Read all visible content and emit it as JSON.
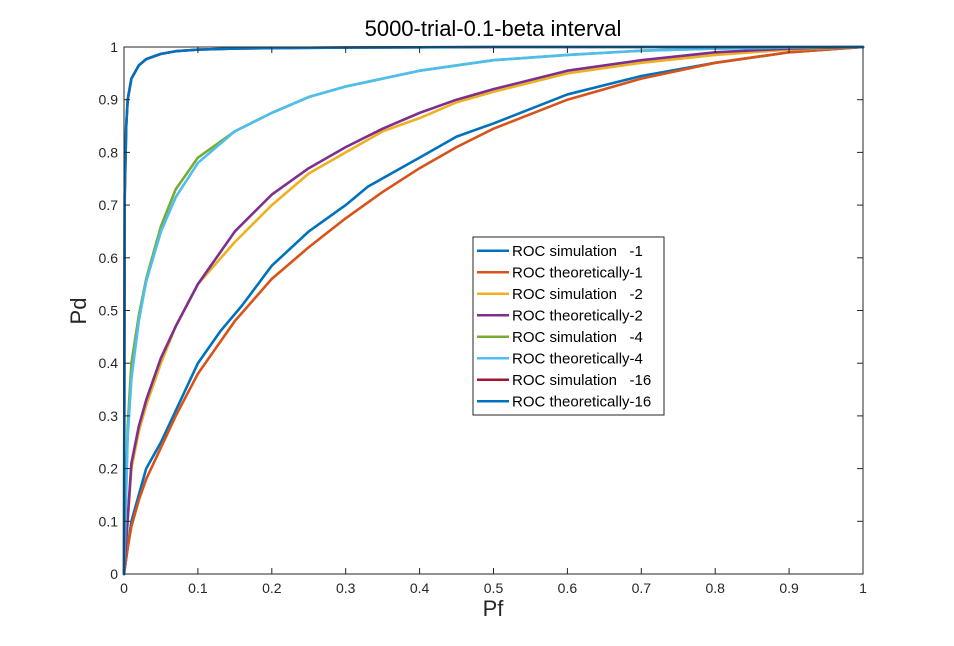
{
  "chart_data": {
    "type": "line",
    "title": "5000-trial-0.1-beta interval",
    "xlabel": "Pf",
    "ylabel": "Pd",
    "xlim": [
      0,
      1
    ],
    "ylim": [
      0,
      1
    ],
    "xticks": [
      "0",
      "0.1",
      "0.2",
      "0.3",
      "0.4",
      "0.5",
      "0.6",
      "0.7",
      "0.8",
      "0.9",
      "1"
    ],
    "yticks": [
      "0",
      "0.1",
      "0.2",
      "0.3",
      "0.4",
      "0.5",
      "0.6",
      "0.7",
      "0.8",
      "0.9",
      "1"
    ],
    "grid": false,
    "legend_position": "center-right",
    "series": [
      {
        "name": "ROC simulation   -1",
        "color": "#0072BD",
        "x": [
          0,
          0.01,
          0.02,
          0.03,
          0.05,
          0.07,
          0.1,
          0.13,
          0.16,
          0.2,
          0.25,
          0.3,
          0.33,
          0.4,
          0.45,
          0.5,
          0.6,
          0.7,
          0.8,
          0.9,
          1
        ],
        "y": [
          0,
          0.1,
          0.15,
          0.2,
          0.25,
          0.31,
          0.4,
          0.46,
          0.51,
          0.585,
          0.65,
          0.7,
          0.735,
          0.79,
          0.83,
          0.855,
          0.91,
          0.945,
          0.97,
          0.99,
          1
        ]
      },
      {
        "name": "ROC theoretically-1",
        "color": "#D95319",
        "x": [
          0,
          0.005,
          0.01,
          0.02,
          0.03,
          0.05,
          0.07,
          0.1,
          0.15,
          0.2,
          0.25,
          0.3,
          0.35,
          0.4,
          0.45,
          0.5,
          0.6,
          0.7,
          0.8,
          0.9,
          1
        ],
        "y": [
          0,
          0.05,
          0.09,
          0.14,
          0.18,
          0.24,
          0.3,
          0.38,
          0.48,
          0.56,
          0.62,
          0.675,
          0.725,
          0.77,
          0.81,
          0.845,
          0.9,
          0.94,
          0.97,
          0.99,
          1
        ]
      },
      {
        "name": "ROC simulation   -2",
        "color": "#EDB120",
        "x": [
          0,
          0.01,
          0.02,
          0.03,
          0.05,
          0.07,
          0.1,
          0.15,
          0.2,
          0.25,
          0.3,
          0.35,
          0.4,
          0.45,
          0.5,
          0.6,
          0.7,
          0.8,
          0.9,
          1
        ],
        "y": [
          0,
          0.2,
          0.27,
          0.32,
          0.4,
          0.47,
          0.55,
          0.63,
          0.7,
          0.76,
          0.8,
          0.84,
          0.865,
          0.895,
          0.915,
          0.95,
          0.97,
          0.985,
          0.995,
          1
        ]
      },
      {
        "name": "ROC theoretically-2",
        "color": "#7E2F8E",
        "x": [
          0,
          0.01,
          0.02,
          0.03,
          0.05,
          0.07,
          0.1,
          0.15,
          0.2,
          0.25,
          0.3,
          0.35,
          0.4,
          0.45,
          0.5,
          0.6,
          0.7,
          0.8,
          0.9,
          1
        ],
        "y": [
          0,
          0.21,
          0.28,
          0.33,
          0.41,
          0.47,
          0.55,
          0.65,
          0.72,
          0.77,
          0.81,
          0.845,
          0.875,
          0.9,
          0.92,
          0.955,
          0.975,
          0.99,
          0.997,
          1
        ]
      },
      {
        "name": "ROC simulation   -4",
        "color": "#77AC30",
        "x": [
          0,
          0.005,
          0.01,
          0.02,
          0.03,
          0.05,
          0.07,
          0.1,
          0.15,
          0.2,
          0.25,
          0.3,
          0.4,
          0.5,
          0.6,
          0.7,
          0.8,
          0.9,
          1
        ],
        "y": [
          0,
          0.28,
          0.4,
          0.49,
          0.56,
          0.66,
          0.73,
          0.79,
          0.84,
          0.875,
          0.905,
          0.925,
          0.955,
          0.975,
          0.985,
          0.993,
          0.997,
          0.999,
          1
        ]
      },
      {
        "name": "ROC theoretically-4",
        "color": "#4DBEEE",
        "x": [
          0,
          0.005,
          0.01,
          0.02,
          0.03,
          0.05,
          0.07,
          0.1,
          0.15,
          0.2,
          0.25,
          0.3,
          0.4,
          0.5,
          0.6,
          0.7,
          0.8,
          0.9,
          1
        ],
        "y": [
          0,
          0.26,
          0.37,
          0.48,
          0.555,
          0.65,
          0.715,
          0.78,
          0.84,
          0.875,
          0.905,
          0.925,
          0.955,
          0.975,
          0.985,
          0.993,
          0.997,
          0.999,
          1
        ]
      },
      {
        "name": "ROC simulation   -16",
        "color": "#A2142F",
        "x": [
          0,
          0.001,
          0.003,
          0.005,
          0.01,
          0.02,
          0.03,
          0.05,
          0.07,
          0.1,
          0.15,
          0.2,
          0.3,
          0.5,
          0.7,
          1
        ],
        "y": [
          0,
          0.72,
          0.85,
          0.9,
          0.94,
          0.965,
          0.977,
          0.987,
          0.992,
          0.995,
          0.997,
          0.998,
          0.999,
          1,
          1,
          1
        ]
      },
      {
        "name": "ROC theoretically-16",
        "color": "#0072BD",
        "x": [
          0,
          0.001,
          0.003,
          0.005,
          0.01,
          0.02,
          0.03,
          0.05,
          0.07,
          0.1,
          0.15,
          0.2,
          0.3,
          0.5,
          0.7,
          1
        ],
        "y": [
          0,
          0.72,
          0.85,
          0.9,
          0.94,
          0.965,
          0.977,
          0.987,
          0.992,
          0.995,
          0.997,
          0.998,
          0.999,
          1,
          1,
          1
        ]
      }
    ]
  }
}
